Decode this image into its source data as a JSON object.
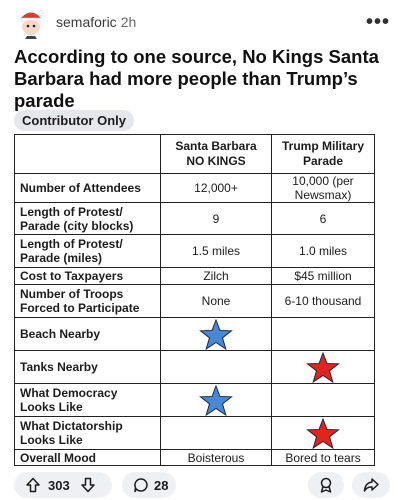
{
  "post": {
    "author": "semaforic",
    "time": "2h",
    "more_label": "•••",
    "title": "According to one source, No Kings Santa Barbara had more people than Trump’s parade",
    "flair": "Contributor Only"
  },
  "table": {
    "headers": [
      "",
      "Santa Barbara NO KINGS",
      "Trump Military Parade"
    ],
    "rows": [
      {
        "label": "Number of Attendees",
        "a": "12,000+",
        "b": "10,000 (per Newsmax)"
      },
      {
        "label": "Length of Protest/ Parade (city blocks)",
        "a": "9",
        "b": "6"
      },
      {
        "label": "Length of Protest/ Parade (miles)",
        "a": "1.5 miles",
        "b": "1.0 miles"
      },
      {
        "label": "Cost to Taxpayers",
        "a": "Zilch",
        "b": "$45 million"
      },
      {
        "label": "Number of Troops Forced to Participate",
        "a": "None",
        "b": "6-10 thousand"
      },
      {
        "label": "Beach Nearby",
        "a": "",
        "b": ""
      },
      {
        "label": "Tanks Nearby",
        "a": "",
        "b": ""
      },
      {
        "label": "What Democracy Looks Like",
        "a": "",
        "b": ""
      },
      {
        "label": "What Dictatorship Looks Like",
        "a": "",
        "b": ""
      },
      {
        "label": "Overall Mood",
        "a": "Boisterous",
        "b": "Bored to tears"
      }
    ],
    "blue_star_color": "#4a88d4",
    "red_star_color": "#e0251f"
  },
  "actions": {
    "upvotes": "303",
    "comments": "28"
  }
}
